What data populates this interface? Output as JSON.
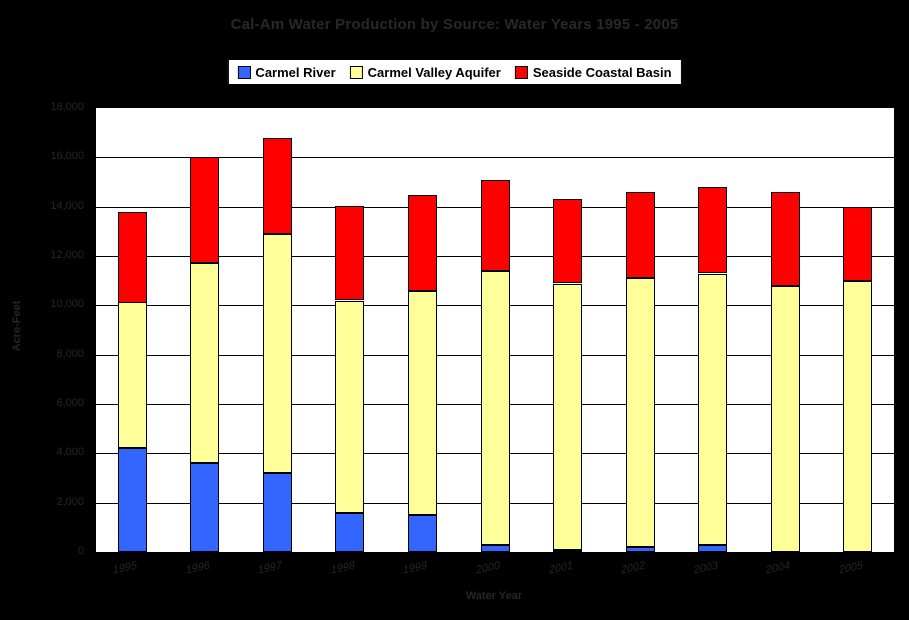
{
  "title": "Cal-Am Water Production by Source: Water Years 1995 - 2005",
  "colors": {
    "background": "#000000",
    "plot_background": "#FFFFFF",
    "gridline": "#000000",
    "faint_text": "#262626",
    "carmel_river": "#3366FF",
    "carmel_valley_aquifer": "#FFFF99",
    "seaside_coastal_basin": "#FF0000"
  },
  "chart_data": {
    "type": "bar",
    "stacked": true,
    "title": "Cal-Am Water Production by Source: Water Years 1995 - 2005",
    "xlabel": "Water Year",
    "ylabel": "Acre-Feet",
    "ylim": [
      0,
      18000
    ],
    "ytick_interval": 2000,
    "yticklabels": [
      "0",
      "2,000",
      "4,000",
      "6,000",
      "8,000",
      "10,000",
      "12,000",
      "14,000",
      "16,000",
      "18,000"
    ],
    "grid": true,
    "legend_position": "top",
    "categories": [
      "1995",
      "1996",
      "1997",
      "1998",
      "1999",
      "2000",
      "2001",
      "2002",
      "2003",
      "2004",
      "2005"
    ],
    "series": [
      {
        "name": "Carmel River",
        "color": "#3366FF",
        "values": [
          4200,
          3600,
          3200,
          1600,
          1500,
          300,
          100,
          200,
          300,
          0,
          0
        ]
      },
      {
        "name": "Carmel Valley Aquifer",
        "color": "#FFFF99",
        "values": [
          5900,
          8100,
          9700,
          8600,
          9100,
          11100,
          10800,
          10900,
          11000,
          10800,
          11000
        ]
      },
      {
        "name": "Seaside Coastal Basin",
        "color": "#FF0000",
        "values": [
          3700,
          4300,
          3900,
          3800,
          3900,
          3700,
          3400,
          3500,
          3500,
          3800,
          3000
        ]
      }
    ],
    "totals": [
      13800,
      16000,
      16800,
      14000,
      14500,
      15100,
      14300,
      14600,
      14800,
      14600,
      14000
    ]
  }
}
